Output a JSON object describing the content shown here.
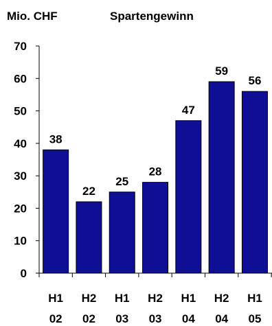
{
  "header": {
    "unit": "Mio. CHF",
    "title": "Spartengewinn"
  },
  "colors": {
    "bar_fill": "#0f0f96",
    "bar_stroke": "#000000",
    "axis": "#000000",
    "text": "#000000"
  },
  "chart_data": {
    "type": "bar",
    "title": "Spartengewinn",
    "ylabel": "Mio. CHF",
    "xlabel": "",
    "categories": [
      [
        "H1",
        "02"
      ],
      [
        "H2",
        "02"
      ],
      [
        "H1",
        "03"
      ],
      [
        "H2",
        "03"
      ],
      [
        "H1",
        "04"
      ],
      [
        "H2",
        "04"
      ],
      [
        "H1",
        "05"
      ]
    ],
    "values": [
      38,
      22,
      25,
      28,
      47,
      59,
      56
    ],
    "ylim": [
      0,
      70
    ],
    "yticks": [
      0,
      10,
      20,
      30,
      40,
      50,
      60,
      70
    ],
    "grid": false,
    "data_labels": true
  }
}
